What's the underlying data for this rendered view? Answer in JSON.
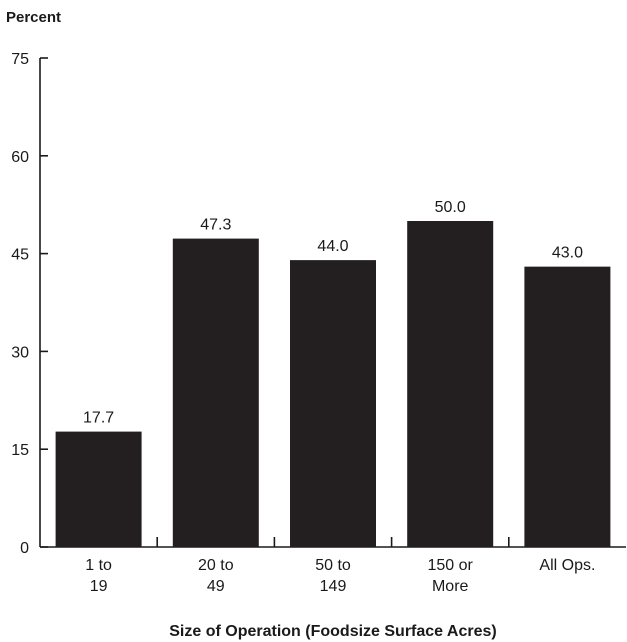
{
  "chart_data": {
    "type": "bar",
    "title": "",
    "ylabel": "Percent",
    "xlabel": "Size of Operation (Foodsize Surface Acres)",
    "ylim": [
      0,
      75
    ],
    "yticks": [
      "0",
      "15",
      "30",
      "45",
      "60",
      "75"
    ],
    "categories": [
      [
        "1 to",
        "19"
      ],
      [
        "20 to",
        "49"
      ],
      [
        "50 to",
        "149"
      ],
      [
        "150 or",
        "More"
      ],
      [
        "All Ops."
      ]
    ],
    "values": [
      17.7,
      47.3,
      44.0,
      50.0,
      43.0
    ],
    "value_labels": [
      "17.7",
      "47.3",
      "44.0",
      "50.0",
      "43.0"
    ],
    "bar_color": "#231f20",
    "grid": false,
    "legend": "none"
  }
}
